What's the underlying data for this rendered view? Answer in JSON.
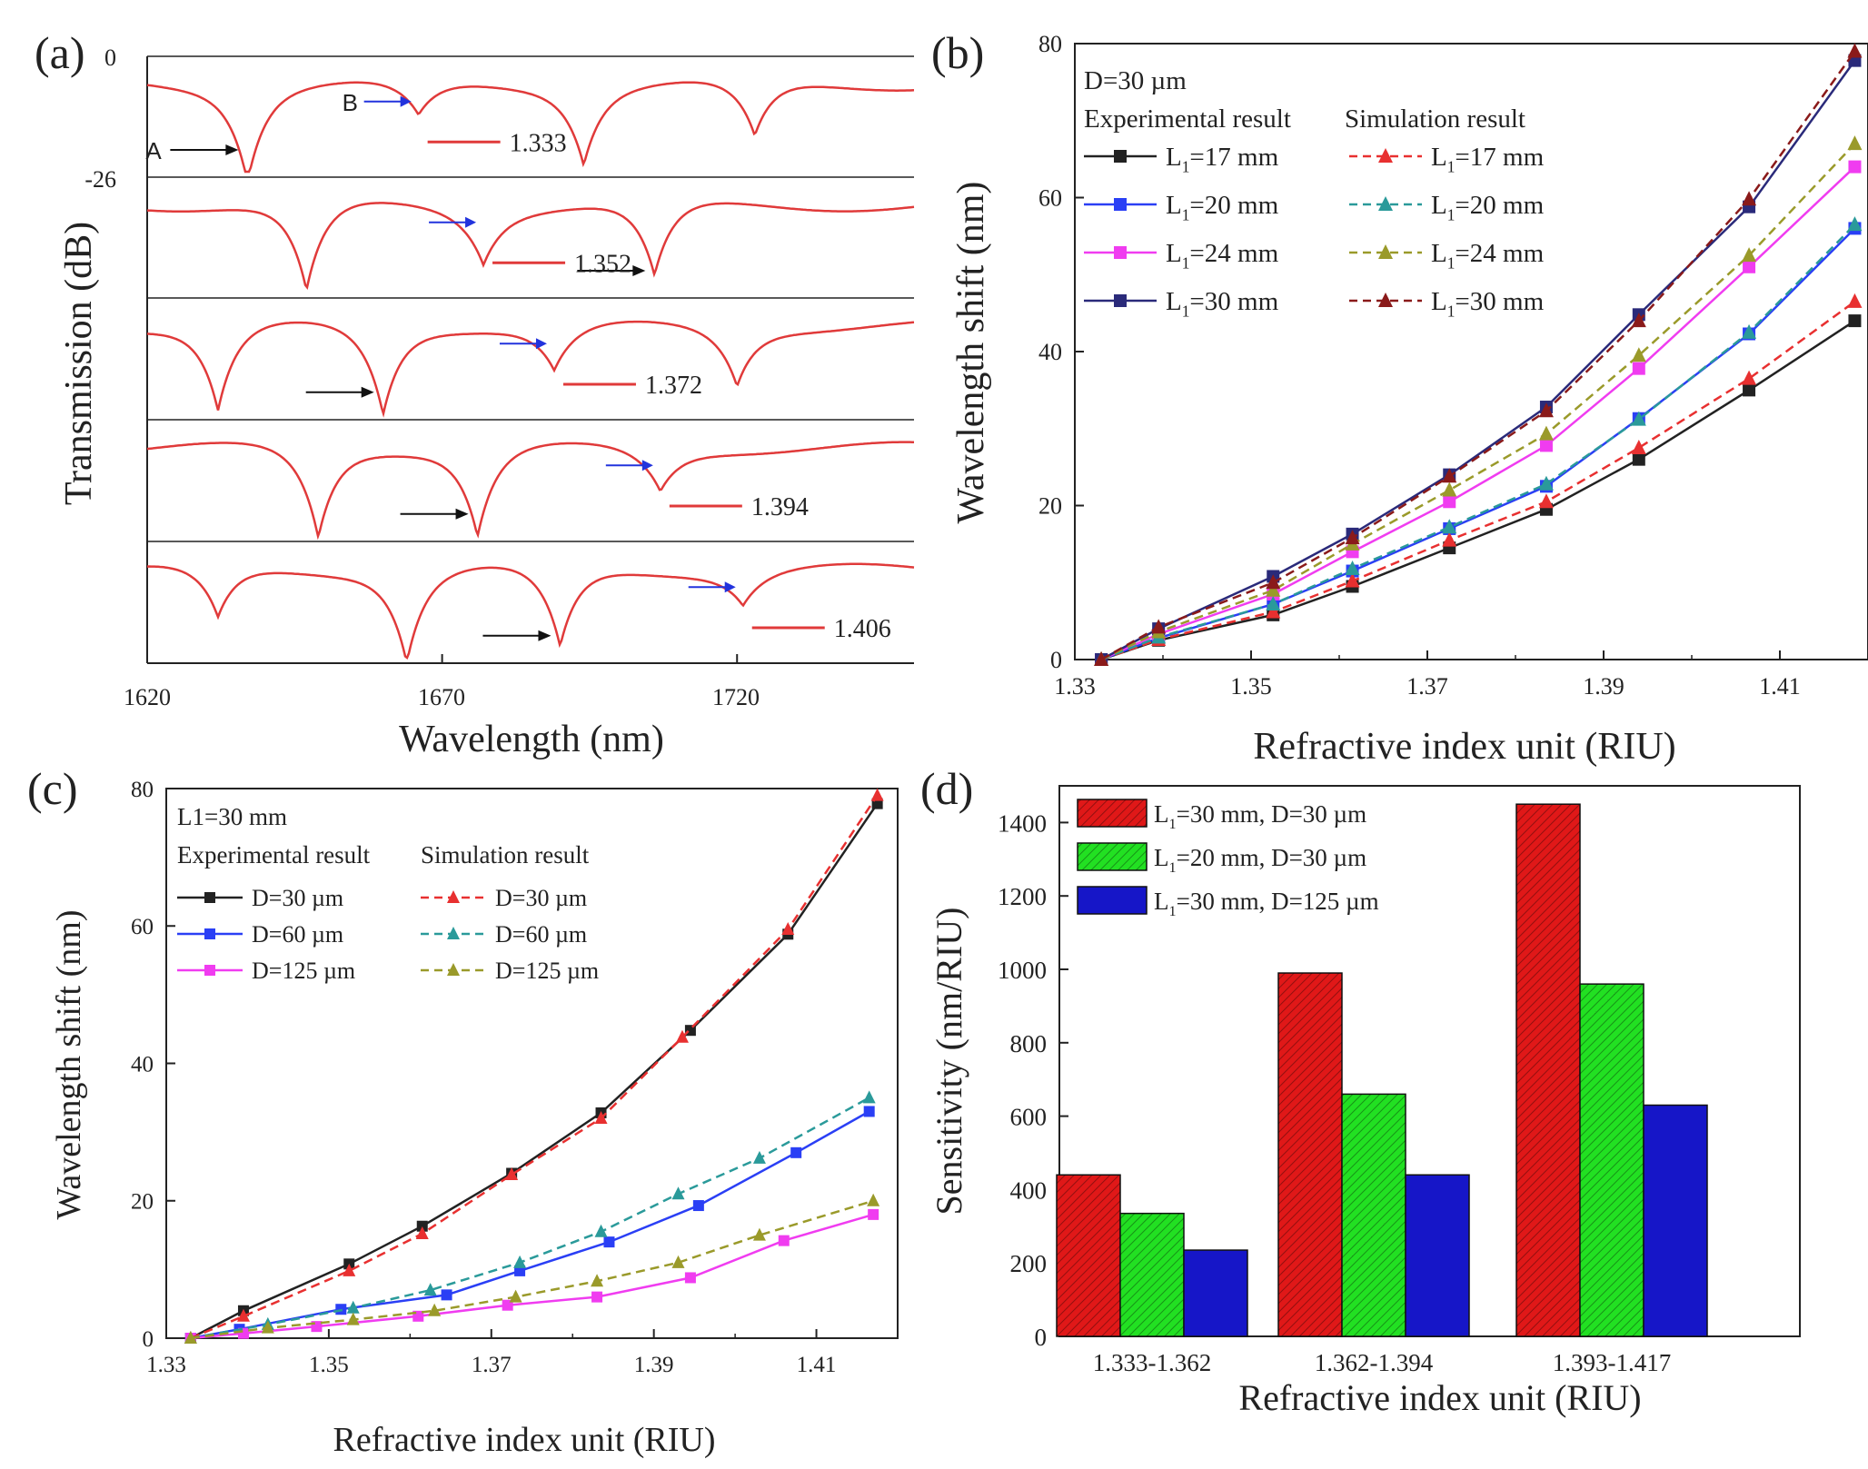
{
  "chart_data": [
    {
      "panel": "(a)",
      "type": "line",
      "xlabel": "Wavelength (nm)",
      "ylabel": "Transmission (dB)",
      "xlim": [
        1620,
        1750
      ],
      "xticks": [
        "1620",
        "1670",
        "1720"
      ],
      "yticks_top": [
        "0",
        "-26"
      ],
      "dip_A_label": "A",
      "dip_B_label": "B",
      "colors": {
        "curve": "#e03a3a",
        "arrowA": "#111111",
        "arrowB": "#2233dd"
      },
      "traces": [
        {
          "label": "1.333",
          "dipsA": [
            1637,
            1694,
            1723
          ],
          "dipB": 1666,
          "dipB_depth": 0.38,
          "dipA_depth": [
            0.98,
            0.8,
            0.6
          ]
        },
        {
          "label": "1.352",
          "dipsA": [
            1647,
            1706
          ],
          "dipB": 1677,
          "dipB_depth": 0.58,
          "dipA_depth": [
            0.95,
            0.8
          ]
        },
        {
          "label": "1.372",
          "dipsA": [
            1632,
            1660,
            1720
          ],
          "dipB": 1689,
          "dipB_depth": 0.48,
          "dipA_depth": [
            0.9,
            0.92,
            0.6
          ]
        },
        {
          "label": "1.394",
          "dipsA": [
            1649,
            1676
          ],
          "dipB": 1707,
          "dipB_depth": 0.45,
          "dipA_depth": [
            0.95,
            0.92
          ]
        },
        {
          "label": "1.406",
          "dipsA": [
            1632,
            1664,
            1690
          ],
          "dipB": 1721,
          "dipB_depth": 0.35,
          "dipA_depth": [
            0.55,
            0.95,
            0.85
          ]
        }
      ]
    },
    {
      "panel": "(b)",
      "type": "line",
      "xlabel": "Refractive index unit (RIU)",
      "ylabel": "Wavelength shift (nm)",
      "xlim": [
        1.33,
        1.42
      ],
      "ylim": [
        0,
        80
      ],
      "xticks": [
        "1.33",
        "1.35",
        "1.37",
        "1.39",
        "1.41"
      ],
      "yticks": [
        "0",
        "20",
        "40",
        "60",
        "80"
      ],
      "header": "D=30 µm",
      "col_exp": "Experimental result",
      "col_sim": "Simulation result",
      "x": [
        1.333,
        1.3395,
        1.3525,
        1.3615,
        1.3725,
        1.3835,
        1.394,
        1.4065,
        1.4185
      ],
      "series": [
        {
          "name": "L1=17 mm",
          "kind": "exp",
          "color": "#222222",
          "marker": "square",
          "values": [
            0,
            2.5,
            5.8,
            9.5,
            14.5,
            19.5,
            26,
            35,
            44
          ]
        },
        {
          "name": "L1=20 mm",
          "kind": "exp",
          "color": "#2a3ff5",
          "marker": "square",
          "values": [
            0,
            2.8,
            7.2,
            11.5,
            17,
            22.5,
            31.3,
            42.3,
            56
          ]
        },
        {
          "name": "L1=24 mm",
          "kind": "exp",
          "color": "#f03cf0",
          "marker": "square",
          "values": [
            0,
            3.3,
            8.5,
            14,
            20.5,
            27.8,
            37.8,
            51,
            64
          ]
        },
        {
          "name": "L1=30 mm",
          "kind": "exp",
          "color": "#2a2a7a",
          "marker": "square",
          "values": [
            0,
            4,
            10.8,
            16.3,
            24,
            32.8,
            44.8,
            58.8,
            77.8
          ]
        },
        {
          "name": "L1=17 mm",
          "kind": "sim",
          "color": "#e83030",
          "marker": "triangle",
          "values": [
            0,
            2.6,
            6.2,
            10.2,
            15.5,
            20.5,
            27.5,
            36.5,
            46.5
          ]
        },
        {
          "name": "L1=20 mm",
          "kind": "sim",
          "color": "#2a9a9a",
          "marker": "triangle",
          "values": [
            0,
            2.9,
            7.2,
            11.8,
            17.2,
            22.8,
            31.2,
            42.5,
            56.5
          ]
        },
        {
          "name": "L1=24 mm",
          "kind": "sim",
          "color": "#9a9a2a",
          "marker": "triangle",
          "values": [
            0,
            3.6,
            9,
            15,
            22,
            29.3,
            39.5,
            52.5,
            67
          ]
        },
        {
          "name": "L1=30 mm",
          "kind": "sim",
          "color": "#8a1a1a",
          "marker": "triangle",
          "values": [
            0,
            4.2,
            10,
            15.8,
            23.8,
            32.3,
            44,
            59.8,
            79
          ]
        }
      ]
    },
    {
      "panel": "(c)",
      "type": "line",
      "xlabel": "Refractive index unit (RIU)",
      "ylabel": "Wavelength shift (nm)",
      "xlim": [
        1.33,
        1.42
      ],
      "ylim": [
        0,
        80
      ],
      "xticks": [
        "1.33",
        "1.35",
        "1.37",
        "1.39",
        "1.41"
      ],
      "yticks": [
        "0",
        "20",
        "40",
        "60",
        "80"
      ],
      "header": "L1=30 mm",
      "col_exp": "Experimental result",
      "col_sim": "Simulation result",
      "series": [
        {
          "name": "D=30 µm",
          "kind": "exp",
          "color": "#222222",
          "marker": "square",
          "x": [
            1.333,
            1.3395,
            1.3525,
            1.3615,
            1.3725,
            1.3835,
            1.3945,
            1.4065,
            1.4175
          ],
          "values": [
            0,
            4,
            10.8,
            16.3,
            24,
            32.8,
            44.8,
            58.8,
            77.8
          ]
        },
        {
          "name": "D=60 µm",
          "kind": "exp",
          "color": "#2a3ff5",
          "marker": "square",
          "x": [
            1.333,
            1.339,
            1.3515,
            1.3645,
            1.3735,
            1.3845,
            1.3955,
            1.4075,
            1.4165
          ],
          "values": [
            0,
            1.3,
            4.2,
            6.3,
            9.8,
            14,
            19.3,
            27,
            33
          ]
        },
        {
          "name": "D=125 µm",
          "kind": "exp",
          "color": "#f03cf0",
          "marker": "square",
          "x": [
            1.333,
            1.3395,
            1.3485,
            1.361,
            1.372,
            1.383,
            1.3945,
            1.406,
            1.417
          ],
          "values": [
            0,
            0.7,
            1.7,
            3.2,
            4.8,
            6,
            8.8,
            14.2,
            18
          ]
        },
        {
          "name": "D=30 µm",
          "kind": "sim",
          "color": "#e83030",
          "marker": "triangle",
          "x": [
            1.333,
            1.3395,
            1.3525,
            1.3615,
            1.3725,
            1.3835,
            1.3935,
            1.4065,
            1.4175
          ],
          "values": [
            0,
            3.2,
            9.8,
            15.2,
            23.8,
            32,
            43.8,
            59.5,
            79
          ]
        },
        {
          "name": "D=60 µm",
          "kind": "sim",
          "color": "#2a9a9a",
          "marker": "triangle",
          "x": [
            1.333,
            1.3425,
            1.353,
            1.3625,
            1.3735,
            1.3835,
            1.393,
            1.403,
            1.4165
          ],
          "values": [
            0,
            2,
            4.4,
            7,
            11,
            15.5,
            21,
            26.2,
            35
          ]
        },
        {
          "name": "D=125 µm",
          "kind": "sim",
          "color": "#9a9a2a",
          "marker": "triangle",
          "x": [
            1.333,
            1.3425,
            1.353,
            1.363,
            1.373,
            1.383,
            1.393,
            1.403,
            1.417
          ],
          "values": [
            0,
            1.5,
            2.7,
            4,
            6,
            8.3,
            11,
            15,
            20
          ]
        }
      ]
    },
    {
      "panel": "(d)",
      "type": "bar",
      "xlabel": "Refractive index unit (RIU)",
      "ylabel": "Sensitivity (nm/RIU)",
      "ylim": [
        0,
        1500
      ],
      "yticks": [
        "0",
        "200",
        "400",
        "600",
        "800",
        "1000",
        "1200",
        "1400"
      ],
      "categories": [
        "1.333-1.362",
        "1.362-1.394",
        "1.393-1.417"
      ],
      "series": [
        {
          "name": "L1=30 mm, D=30 µm",
          "color": "#e01818",
          "values": [
            440,
            990,
            1450
          ]
        },
        {
          "name": "L1=20 mm, D=30 µm",
          "color": "#22e022",
          "values": [
            335,
            660,
            960
          ]
        },
        {
          "name": "L1=30 mm, D=125 µm",
          "color": "#1616c8",
          "values": [
            235,
            440,
            630
          ]
        }
      ]
    }
  ]
}
